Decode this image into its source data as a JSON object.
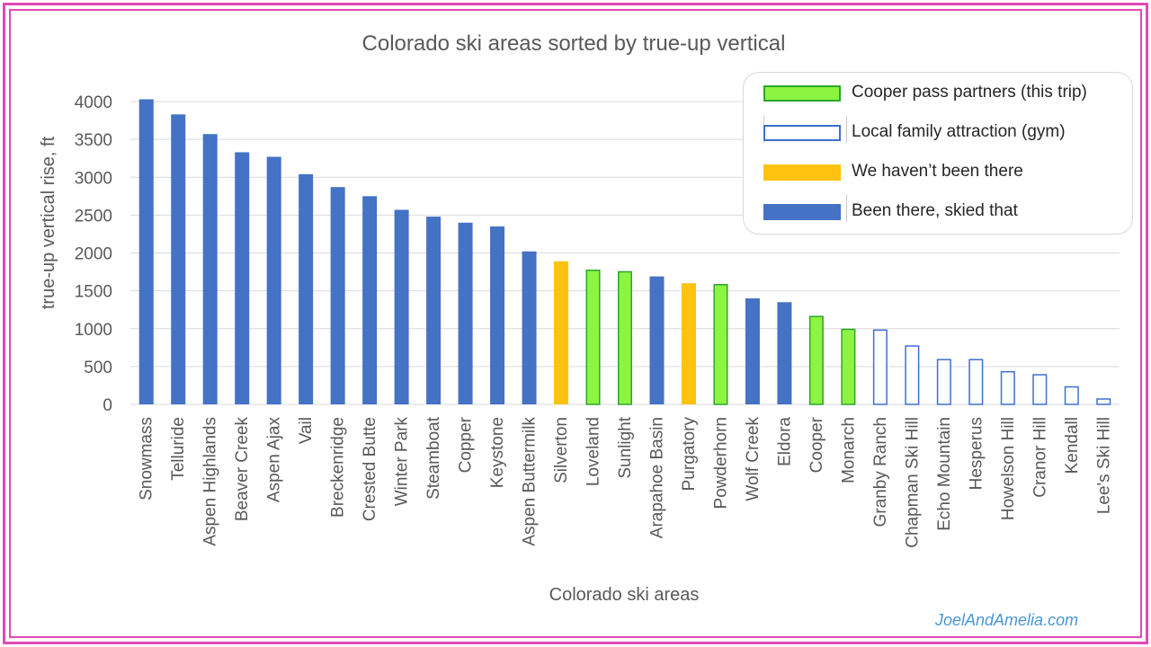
{
  "chart_data": {
    "type": "bar",
    "title": "Colorado ski areas sorted by true-up vertical",
    "xlabel": "Colorado ski areas",
    "ylabel": "true-up vertical rise, ft",
    "ylim": [
      0,
      4000
    ],
    "yticks": [
      0,
      500,
      1000,
      1500,
      2000,
      2500,
      3000,
      3500,
      4000
    ],
    "grid": true,
    "legend_position": "top-right",
    "categories": [
      "Snowmass",
      "Telluride",
      "Aspen Highlands",
      "Beaver Creek",
      "Aspen Ajax",
      "Vail",
      "Breckenridge",
      "Crested Butte",
      "Winter Park",
      "Steamboat",
      "Copper",
      "Keystone",
      "Aspen Buttermilk",
      "Silverton",
      "Loveland",
      "Sunlight",
      "Arapahoe Basin",
      "Purgatory",
      "Powderhorn",
      "Wolf Creek",
      "Eldora",
      "Cooper",
      "Monarch",
      "Granby Ranch",
      "Chapman Ski Hill",
      "Echo Mountain",
      "Hesperus",
      "Howelson Hill",
      "Cranor Hill",
      "Kendall",
      "Lee's Ski Hill"
    ],
    "values": [
      4030,
      3830,
      3570,
      3330,
      3270,
      3040,
      2870,
      2750,
      2570,
      2480,
      2400,
      2350,
      2020,
      1890,
      1780,
      1760,
      1690,
      1600,
      1590,
      1400,
      1350,
      1170,
      1000,
      990,
      780,
      600,
      600,
      440,
      400,
      240,
      80
    ],
    "groups": [
      "been",
      "been",
      "been",
      "been",
      "been",
      "been",
      "been",
      "been",
      "been",
      "been",
      "been",
      "been",
      "been",
      "not",
      "cooper",
      "cooper",
      "been",
      "not",
      "cooper",
      "been",
      "been",
      "cooper",
      "cooper",
      "local",
      "local",
      "local",
      "local",
      "local",
      "local",
      "local",
      "local"
    ],
    "series": [
      {
        "key": "cooper",
        "name": "Cooper pass partners (this trip)",
        "fill": "#8cf542",
        "stroke": "#2da52d"
      },
      {
        "key": "local",
        "name": "Local family attraction (gym)",
        "fill": "#ffffff",
        "stroke": "#3d6fd1"
      },
      {
        "key": "not",
        "name": "We haven’t been there",
        "fill": "#ffc20e",
        "stroke": "#ffc20e"
      },
      {
        "key": "been",
        "name": "Been there, skied that",
        "fill": "#4472c4",
        "stroke": "#4472c4"
      }
    ]
  },
  "watermark": "JoelAndAmelia.com",
  "colors": {
    "frame": "#e24ab5",
    "grid": "#d9d9d9",
    "text": "#595959"
  }
}
